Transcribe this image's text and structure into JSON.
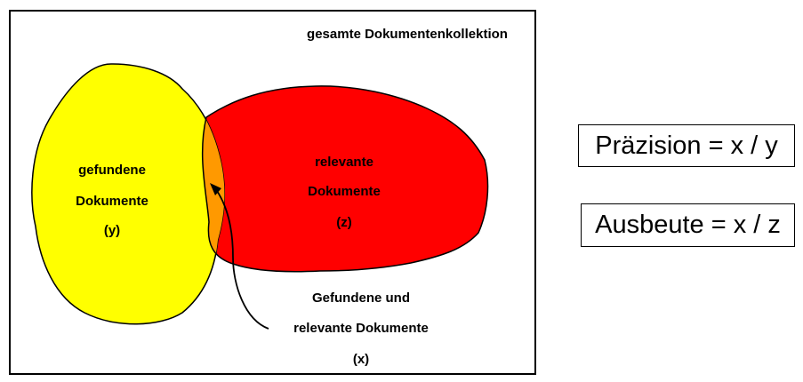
{
  "collection_label": "gesamte Dokumentenkollektion",
  "found": {
    "line1": "gefundene",
    "line2": "Dokumente",
    "line3": "(y)"
  },
  "relevant": {
    "line1": "relevante",
    "line2": "Dokumente",
    "line3": "(z)"
  },
  "intersection": {
    "line1": "Gefundene und",
    "line2": "relevante Dokumente",
    "line3": "(x)"
  },
  "formulas": {
    "precision": "Präzision = x / y",
    "recall": "Ausbeute = x / z"
  },
  "colors": {
    "found": "#ffff00",
    "relevant": "#ff0000",
    "intersection": "#ff9900",
    "outline": "#000000"
  }
}
